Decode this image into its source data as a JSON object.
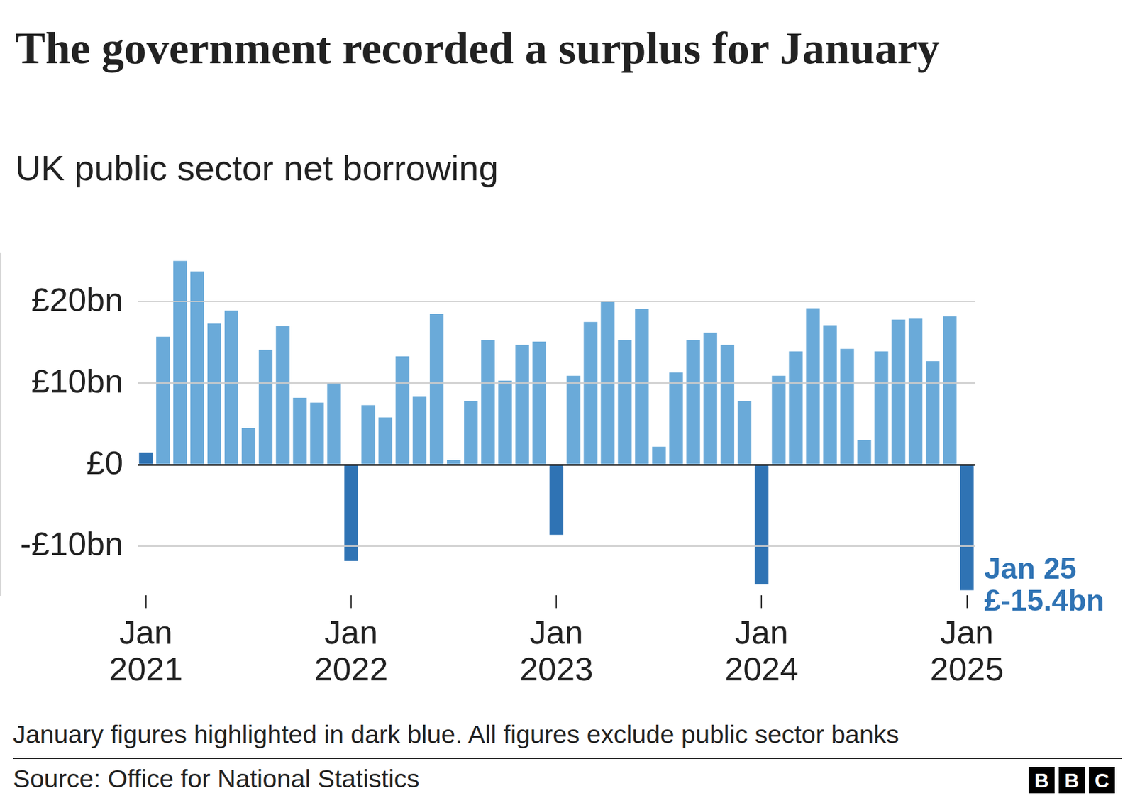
{
  "chart_data": {
    "type": "bar",
    "title": "The government recorded a surplus for January",
    "subtitle": "UK public sector net borrowing",
    "categories": [
      "Jan 2021",
      null,
      null,
      null,
      null,
      null,
      null,
      null,
      null,
      null,
      null,
      null,
      "Jan 2022",
      null,
      null,
      null,
      null,
      null,
      null,
      null,
      null,
      null,
      null,
      null,
      "Jan 2023",
      null,
      null,
      null,
      null,
      null,
      null,
      null,
      null,
      null,
      null,
      null,
      "Jan 2024",
      null,
      null,
      null,
      null,
      null,
      null,
      null,
      null,
      null,
      null,
      null,
      "Jan 2025"
    ],
    "values": [
      1.5,
      15.7,
      25.0,
      23.7,
      17.3,
      18.9,
      4.5,
      14.1,
      17.0,
      8.2,
      7.6,
      10.0,
      -11.8,
      7.3,
      5.8,
      13.3,
      8.4,
      18.5,
      0.6,
      7.8,
      15.3,
      10.3,
      14.7,
      15.1,
      -8.6,
      10.9,
      17.5,
      20.0,
      15.3,
      19.1,
      2.2,
      11.3,
      15.3,
      16.2,
      14.7,
      7.8,
      -14.7,
      10.9,
      13.9,
      19.2,
      17.1,
      14.2,
      3.0,
      13.9,
      17.8,
      17.9,
      12.7,
      18.2,
      -15.4
    ],
    "colors": [
      "#2f73b4",
      "#6aaad9",
      "#6aaad9",
      "#6aaad9",
      "#6aaad9",
      "#6aaad9",
      "#6aaad9",
      "#6aaad9",
      "#6aaad9",
      "#6aaad9",
      "#6aaad9",
      "#6aaad9",
      "#2f73b4",
      "#6aaad9",
      "#6aaad9",
      "#6aaad9",
      "#6aaad9",
      "#6aaad9",
      "#6aaad9",
      "#6aaad9",
      "#6aaad9",
      "#6aaad9",
      "#6aaad9",
      "#6aaad9",
      "#2f73b4",
      "#6aaad9",
      "#6aaad9",
      "#6aaad9",
      "#6aaad9",
      "#6aaad9",
      "#6aaad9",
      "#6aaad9",
      "#6aaad9",
      "#6aaad9",
      "#6aaad9",
      "#6aaad9",
      "#2f73b4",
      "#6aaad9",
      "#6aaad9",
      "#6aaad9",
      "#6aaad9",
      "#6aaad9",
      "#6aaad9",
      "#6aaad9",
      "#6aaad9",
      "#6aaad9",
      "#6aaad9",
      "#6aaad9",
      "#2f73b4"
    ],
    "ylim": [
      -16,
      26
    ],
    "yticks": [
      {
        "value": -10,
        "label": "-£10bn"
      },
      {
        "value": 0,
        "label": "£0"
      },
      {
        "value": 10,
        "label": "£10bn"
      },
      {
        "value": 20,
        "label": "£20bn"
      }
    ],
    "grid": true,
    "annotations": [
      "Jan 25",
      "£-15.4bn"
    ],
    "note": "January figures highlighted in dark blue. All figures exclude public sector banks",
    "source": "Source: Office for National Statistics",
    "logo": "BBC"
  }
}
